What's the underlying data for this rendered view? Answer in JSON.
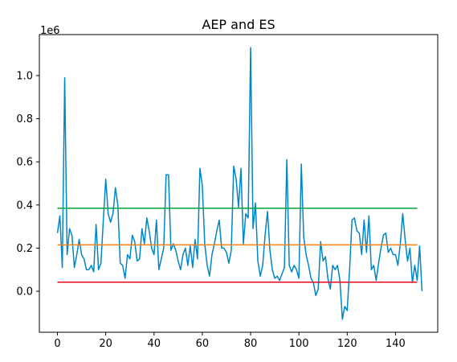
{
  "chart_data": {
    "type": "line",
    "title": "AEP and ES",
    "xlabel": "",
    "ylabel": "",
    "y_offset_text": "1e6",
    "xlim": [
      -7.5,
      157.5
    ],
    "ylim": [
      -0.19,
      1.19
    ],
    "x_ticks": [
      0,
      20,
      40,
      60,
      80,
      100,
      120,
      140
    ],
    "x_tick_labels": [
      "0",
      "20",
      "40",
      "60",
      "80",
      "100",
      "120",
      "140"
    ],
    "y_ticks": [
      0.0,
      0.2,
      0.4,
      0.6,
      0.8,
      1.0
    ],
    "y_tick_labels": [
      "0.0",
      "0.2",
      "0.4",
      "0.6",
      "0.8",
      "1.0"
    ],
    "grid": false,
    "legend": "none",
    "series": [
      {
        "color": "#0086c7",
        "x_start": 0,
        "values": [
          0.27,
          0.35,
          0.11,
          0.99,
          0.17,
          0.29,
          0.26,
          0.11,
          0.17,
          0.24,
          0.17,
          0.15,
          0.1,
          0.1,
          0.12,
          0.09,
          0.31,
          0.1,
          0.13,
          0.33,
          0.52,
          0.36,
          0.32,
          0.36,
          0.48,
          0.4,
          0.13,
          0.12,
          0.06,
          0.17,
          0.15,
          0.26,
          0.23,
          0.14,
          0.15,
          0.29,
          0.22,
          0.34,
          0.28,
          0.2,
          0.17,
          0.33,
          0.1,
          0.15,
          0.2,
          0.54,
          0.54,
          0.19,
          0.22,
          0.19,
          0.14,
          0.1,
          0.17,
          0.2,
          0.12,
          0.21,
          0.11,
          0.24,
          0.15,
          0.57,
          0.49,
          0.22,
          0.12,
          0.07,
          0.17,
          0.22,
          0.28,
          0.33,
          0.2,
          0.2,
          0.18,
          0.13,
          0.19,
          0.58,
          0.52,
          0.39,
          0.57,
          0.22,
          0.36,
          0.34,
          1.13,
          0.29,
          0.41,
          0.14,
          0.07,
          0.12,
          0.26,
          0.37,
          0.19,
          0.1,
          0.06,
          0.07,
          0.05,
          0.08,
          0.11,
          0.61,
          0.12,
          0.09,
          0.12,
          0.1,
          0.06,
          0.59,
          0.25,
          0.17,
          0.12,
          0.06,
          0.04,
          -0.02,
          0.01,
          0.23,
          0.14,
          0.16,
          0.06,
          0.01,
          0.12,
          0.1,
          0.12,
          0.05,
          -0.13,
          -0.07,
          -0.09,
          0.1,
          0.33,
          0.34,
          0.28,
          0.27,
          0.17,
          0.33,
          0.18,
          0.35,
          0.1,
          0.12,
          0.05,
          0.13,
          0.2,
          0.26,
          0.27,
          0.18,
          0.2,
          0.17,
          0.17,
          0.12,
          0.22,
          0.36,
          0.24,
          0.14,
          0.2,
          0.04,
          0.12,
          0.05,
          0.21,
          0.0
        ]
      },
      {
        "color": "#00a33a",
        "x": [
          0,
          149
        ],
        "values": [
          0.385,
          0.385
        ]
      },
      {
        "color": "#ff7f0e",
        "x": [
          0,
          149
        ],
        "values": [
          0.215,
          0.215
        ]
      },
      {
        "color": "#e8001c",
        "x": [
          0,
          149
        ],
        "values": [
          0.042,
          0.042
        ]
      }
    ]
  }
}
